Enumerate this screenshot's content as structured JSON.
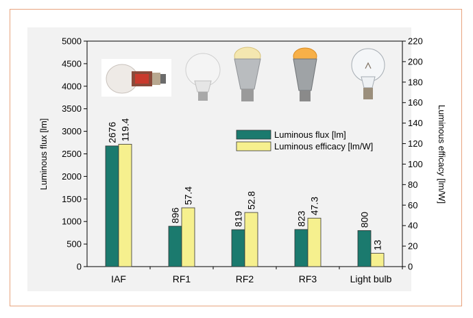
{
  "chart_data": {
    "type": "bar",
    "categories": [
      "IAF",
      "RF1",
      "RF2",
      "RF3",
      "Light bulb"
    ],
    "series": [
      {
        "name": "Luminous flux [lm]",
        "axis": "left",
        "values": [
          2676,
          896,
          819,
          823,
          800
        ],
        "labels": [
          "2676",
          "896",
          "819",
          "823",
          "800"
        ],
        "color": "#1b7a6e"
      },
      {
        "name": "Luminous efficacy [lm/W]",
        "axis": "right",
        "values": [
          119.4,
          57.4,
          52.8,
          47.3,
          13
        ],
        "labels": [
          "119.4",
          "57.4",
          "52.8",
          "47.3",
          "13"
        ],
        "color": "#f6f08e"
      }
    ],
    "ylabel": "Luminous flux [lm]",
    "ylabel_right": "Luminous efficacy [lm/W]",
    "ylim": [
      0,
      5000
    ],
    "ylim_right": [
      0,
      220
    ],
    "yticks": [
      0,
      500,
      1000,
      1500,
      2000,
      2500,
      3000,
      3500,
      4000,
      4500,
      5000
    ],
    "yticks_right": [
      0,
      20,
      40,
      60,
      80,
      100,
      120,
      140,
      160,
      180,
      200,
      220
    ],
    "legend_position": "center-right",
    "grid": false,
    "images": [
      {
        "name": "iaf-lamp-photo",
        "category": "IAF"
      },
      {
        "name": "rf1-lamp-photo",
        "category": "RF1"
      },
      {
        "name": "rf2-lamp-photo",
        "category": "RF2"
      },
      {
        "name": "rf3-lamp-photo",
        "category": "RF3"
      },
      {
        "name": "incandescent-bulb-photo",
        "category": "Light bulb"
      }
    ]
  }
}
